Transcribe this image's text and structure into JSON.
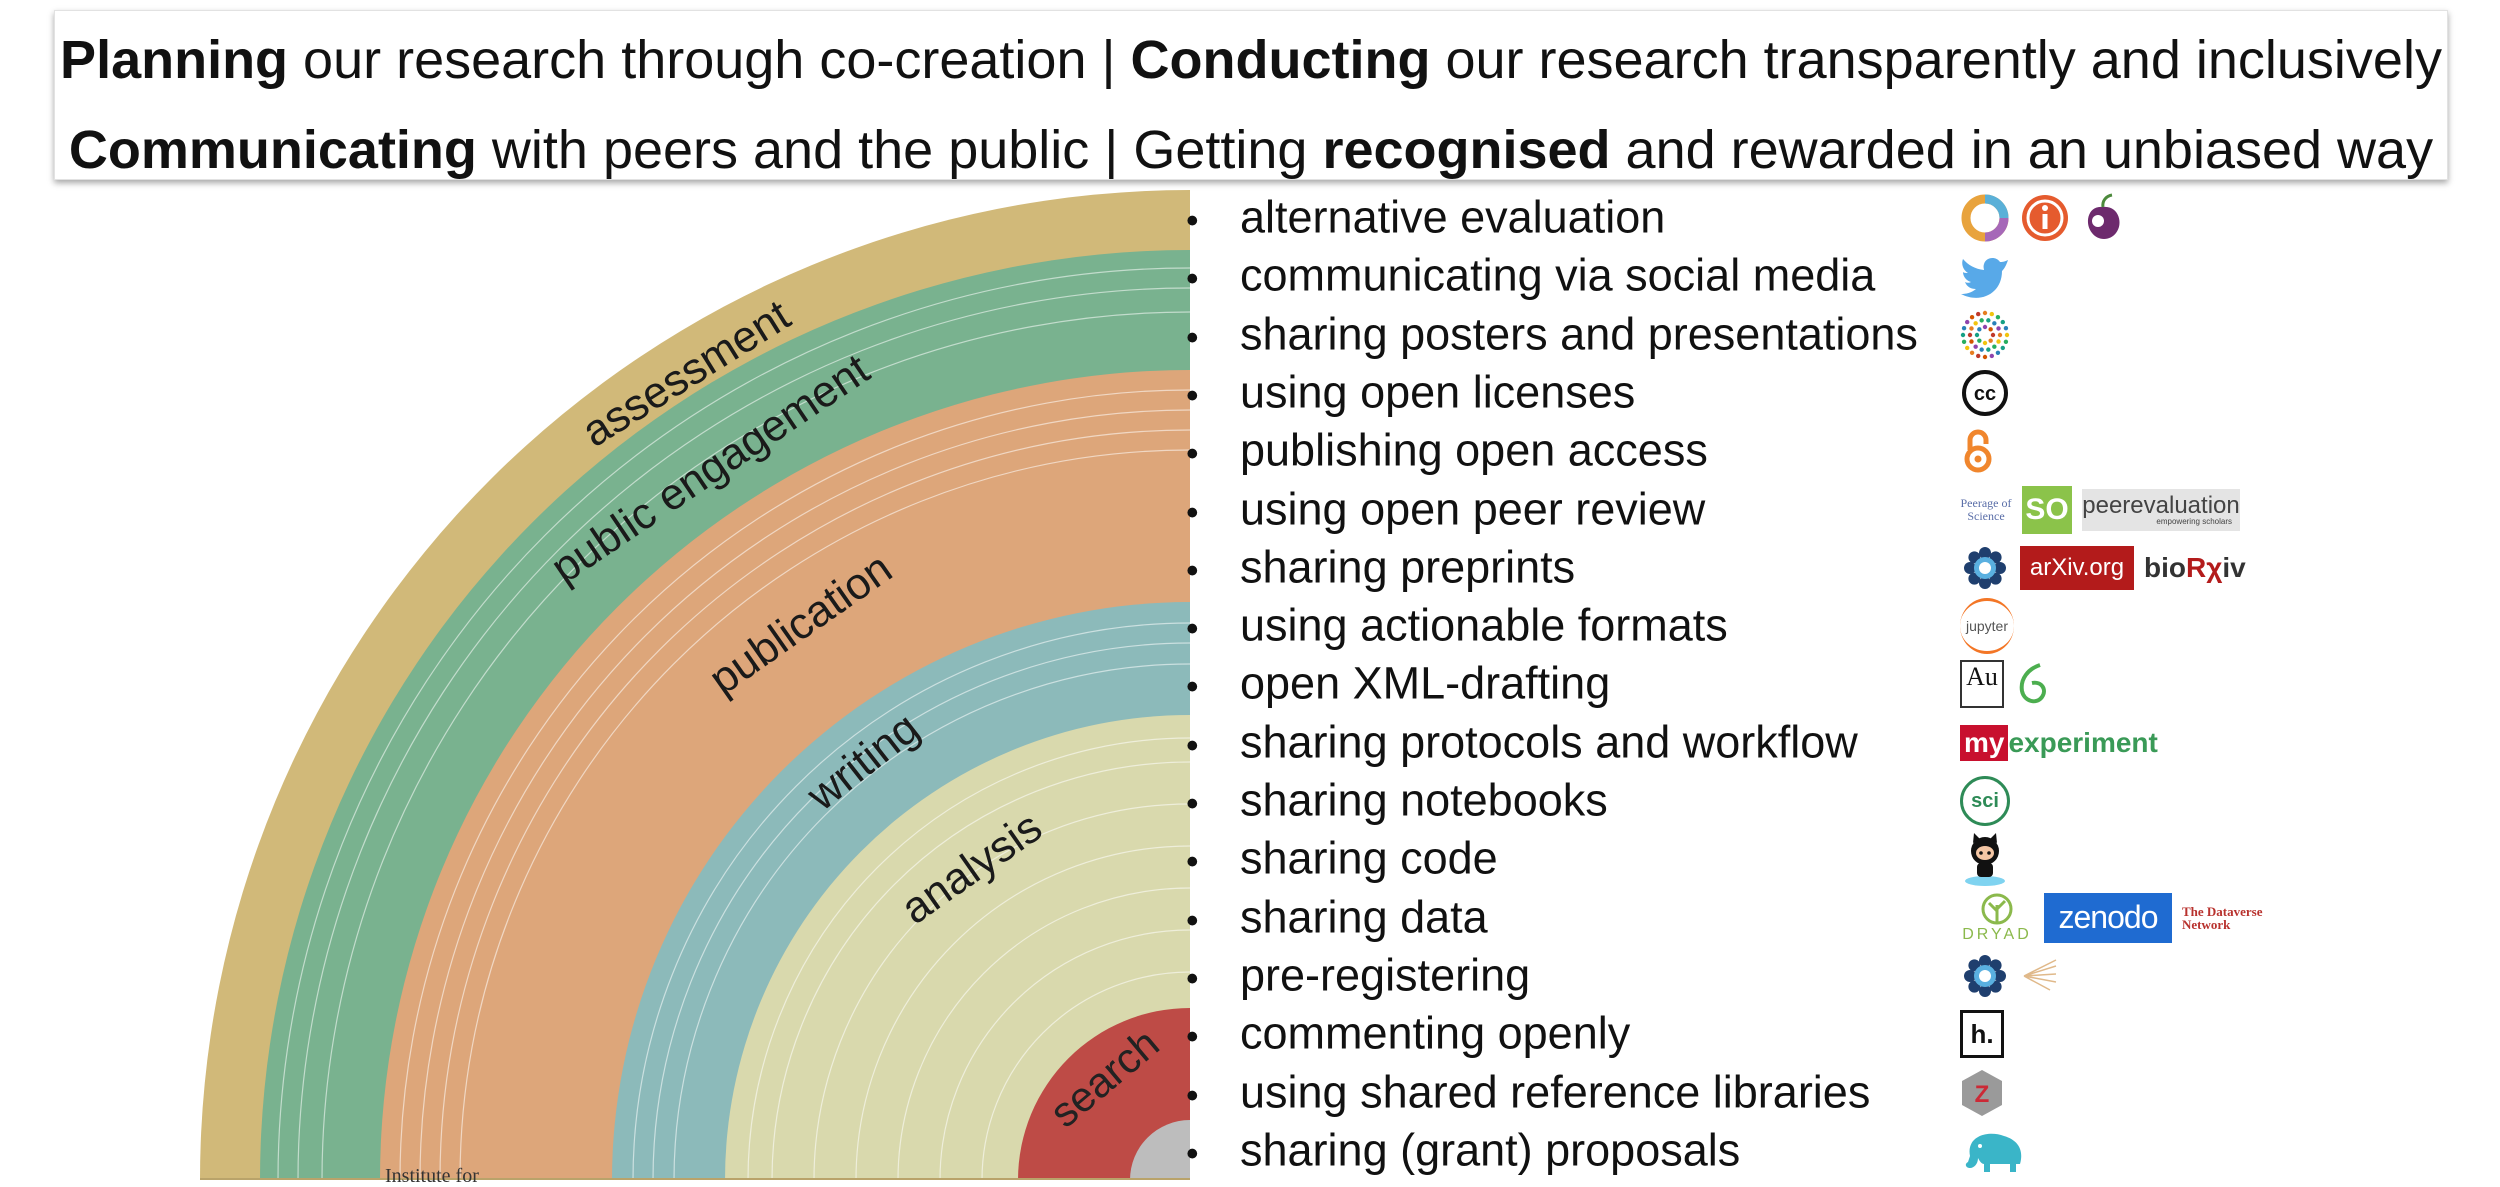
{
  "banner": {
    "line1": {
      "b1": "Planning",
      "t1": " our research through co-creation | ",
      "b2": "Conducting",
      "t2": " our research transparently and inclusively"
    },
    "line2": {
      "b1": "Communicating",
      "t1": " with peers and the public | Getting ",
      "b2": "recognised",
      "t2": " and rewarded in an unbiased way"
    }
  },
  "phases": [
    {
      "label": "assessment",
      "color": "#d1b979"
    },
    {
      "label": "public engagement",
      "color": "#79b28f"
    },
    {
      "label": "publication",
      "color": "#dda67a"
    },
    {
      "label": "writing",
      "color": "#8cbaba"
    },
    {
      "label": "analysis",
      "color": "#d9d9ad"
    },
    {
      "label": "search",
      "color": "#be4b46"
    }
  ],
  "practices": [
    {
      "label": "alternative evaluation",
      "logos": [
        "altmetric-icon",
        "impactstory-icon",
        "plum-icon"
      ]
    },
    {
      "label": "communicating via social media",
      "logos": [
        "twitter-icon"
      ]
    },
    {
      "label": "sharing posters and presentations",
      "logos": [
        "figshare-icon"
      ]
    },
    {
      "label": "using open licenses",
      "logos": [
        "creative-commons-icon"
      ]
    },
    {
      "label": "publishing open access",
      "logos": [
        "open-access-icon"
      ]
    },
    {
      "label": "using open peer review",
      "logos": [
        "peerage-of-science-logo",
        "scienceopen-logo",
        "peerevaluation-logo"
      ]
    },
    {
      "label": "sharing preprints",
      "logos": [
        "osf-icon",
        "arxiv-logo",
        "biorxiv-logo"
      ]
    },
    {
      "label": "using actionable formats",
      "logos": [
        "jupyter-logo"
      ]
    },
    {
      "label": "open XML-drafting",
      "logos": [
        "authorea-icon",
        "overleaf-icon"
      ]
    },
    {
      "label": "sharing protocols and workflow",
      "logos": [
        "myexperiment-logo"
      ]
    },
    {
      "label": "sharing notebooks",
      "logos": [
        "scinote-icon"
      ]
    },
    {
      "label": "sharing code",
      "logos": [
        "github-octocat-icon"
      ]
    },
    {
      "label": "sharing data",
      "logos": [
        "dryad-logo",
        "zenodo-logo",
        "dataverse-logo"
      ]
    },
    {
      "label": "pre-registering",
      "logos": [
        "osf-icon",
        "aspredicted-icon"
      ]
    },
    {
      "label": "commenting openly",
      "logos": [
        "hypothesis-icon"
      ]
    },
    {
      "label": "using shared reference libraries",
      "logos": [
        "zotero-icon"
      ]
    },
    {
      "label": "sharing (grant) proposals",
      "logos": [
        "elephant-icon"
      ]
    }
  ],
  "logo_text": {
    "peerage": "Peerage of Science",
    "scienceopen": "SO",
    "peerevaluation": "peerevaluation",
    "peerevaluation_sub": "empowering scholars",
    "arxiv": "arXiv.org",
    "biorxiv": "bioRχiv",
    "jupyter": "jupyter",
    "authorea": "Au",
    "myexperiment_my": "my",
    "myexperiment_rest": "experiment",
    "scinote": "sci",
    "dryad": "DRYAD",
    "zenodo": "zenodo",
    "dataverse": "The Dataverse Network",
    "hypothesis": "h.",
    "zotero": "Z"
  },
  "footer_fragment": "Institute for"
}
